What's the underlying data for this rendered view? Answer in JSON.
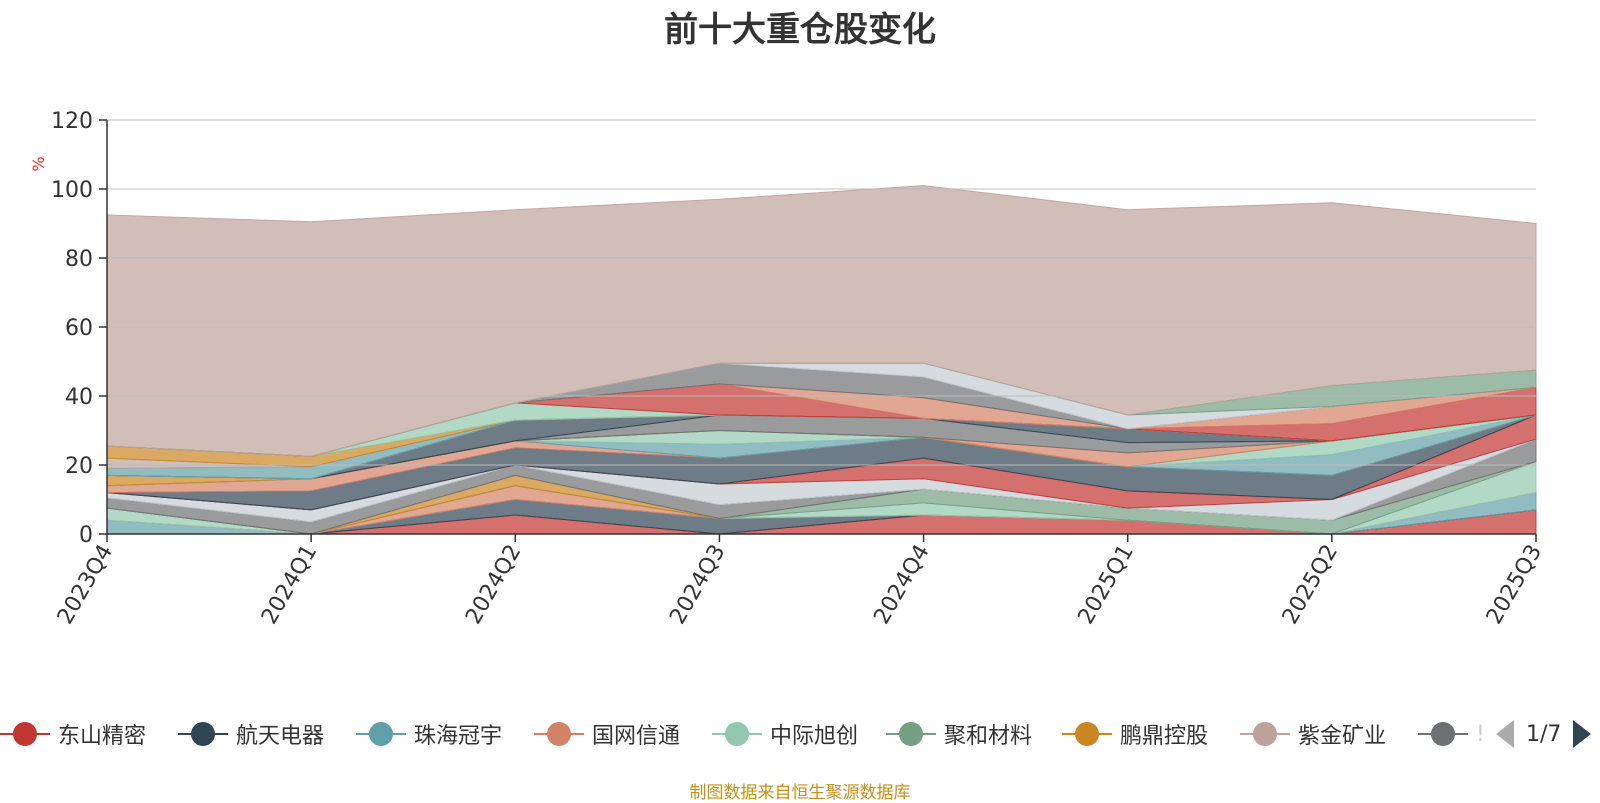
{
  "chart_data": {
    "type": "area",
    "title": "前十大重仓股变化",
    "ylabel": "%",
    "ylim": [
      0,
      120
    ],
    "yticks": [
      0,
      20,
      40,
      60,
      80,
      100,
      120
    ],
    "grid": true,
    "categories": [
      "2023Q4",
      "2024Q1",
      "2024Q2",
      "2024Q3",
      "2024Q4",
      "2025Q1",
      "2025Q2",
      "2025Q3"
    ],
    "series": [
      {
        "name": "东山精密",
        "color": "#c23531",
        "values": [
          0,
          0,
          5.5,
          0,
          5.5,
          4,
          0,
          7
        ]
      },
      {
        "name": "航天电器",
        "color": "#2f4554",
        "values": [
          0,
          0,
          4.5,
          4.5,
          0,
          0,
          0,
          0
        ]
      },
      {
        "name": "珠海冠宇",
        "color": "#61a0a8",
        "values": [
          4,
          0,
          0,
          0,
          0,
          0,
          0,
          5
        ]
      },
      {
        "name": "国网信通",
        "color": "#d48265",
        "values": [
          0,
          0,
          4,
          0,
          0,
          0,
          0,
          0
        ]
      },
      {
        "name": "中际旭创",
        "color": "#91c7ae",
        "values": [
          3.5,
          0,
          0,
          0,
          3.5,
          0,
          0,
          9
        ]
      },
      {
        "name": "聚和材料",
        "color": "#749f83",
        "values": [
          0,
          0,
          0,
          0,
          4,
          3.5,
          4,
          0
        ]
      },
      {
        "name": "鹏鼎控股",
        "color": "#ca8622",
        "values": [
          0,
          0,
          3,
          0,
          0,
          0,
          0,
          0
        ]
      },
      {
        "name": "紫金矿业",
        "color": "#bda29a",
        "values": [
          0,
          0,
          0,
          0,
          0,
          0,
          0,
          0
        ]
      },
      {
        "name": "",
        "color": "#6e7074",
        "values": [
          3,
          3.5,
          3,
          4,
          0,
          0,
          0,
          6.5
        ]
      },
      {
        "name": "",
        "color": "#546570",
        "values": [
          0,
          0,
          0,
          0,
          0,
          0,
          0,
          0
        ]
      },
      {
        "name": "",
        "color": "#c4ccd3",
        "values": [
          1.5,
          3.5,
          0,
          6,
          3,
          0,
          6,
          0
        ]
      },
      {
        "name": "",
        "color": "#c23531",
        "values": [
          0,
          0,
          0,
          0,
          6,
          5,
          0,
          7
        ]
      },
      {
        "name": "",
        "color": "#2f4554",
        "values": [
          0,
          5.5,
          5,
          7.5,
          6,
          7,
          7,
          0
        ]
      },
      {
        "name": "",
        "color": "#d48265",
        "values": [
          2,
          3.5,
          2,
          0,
          0,
          0,
          0,
          0
        ]
      },
      {
        "name": "",
        "color": "#61a0a8",
        "values": [
          0,
          0,
          0,
          4,
          0,
          0,
          6,
          0
        ]
      },
      {
        "name": "",
        "color": "#91c7ae",
        "values": [
          0,
          0,
          0,
          4,
          0,
          0,
          4,
          0
        ]
      },
      {
        "name": "",
        "color": "#ca8622",
        "values": [
          3,
          0,
          0,
          0,
          0,
          0,
          0,
          0
        ]
      },
      {
        "name": "",
        "color": "#d48265",
        "values": [
          0,
          0,
          0,
          0,
          0,
          4,
          0,
          0
        ]
      },
      {
        "name": "",
        "color": "#6e7074",
        "values": [
          0,
          0,
          0,
          4.5,
          5.5,
          3,
          0,
          0
        ]
      },
      {
        "name": "",
        "color": "#2f4554",
        "values": [
          0,
          0,
          6,
          0,
          0,
          4,
          0,
          0
        ]
      },
      {
        "name": "",
        "color": "#c23531",
        "values": [
          0,
          0,
          0,
          0,
          0,
          0,
          0,
          0
        ]
      },
      {
        "name": "",
        "color": "#91c7ae",
        "values": [
          0,
          0,
          0,
          0,
          0,
          0,
          0,
          0
        ]
      },
      {
        "name": "",
        "color": "#61a0a8",
        "values": [
          2,
          3.5,
          0,
          0,
          0,
          0,
          0,
          0
        ]
      },
      {
        "name": "",
        "color": "#bda29a",
        "values": [
          3,
          0,
          0,
          0,
          0,
          0,
          0,
          0
        ]
      },
      {
        "name": "",
        "color": "#ca8622",
        "values": [
          3.5,
          3,
          0,
          0,
          0,
          0,
          0,
          0
        ]
      },
      {
        "name": "",
        "color": "#91c7ae",
        "values": [
          0,
          0,
          5,
          0,
          0,
          0,
          0,
          0
        ]
      },
      {
        "name": "",
        "color": "#c23531",
        "values": [
          0,
          0,
          0,
          9,
          0,
          0,
          5,
          8
        ]
      },
      {
        "name": "",
        "color": "#d48265",
        "values": [
          0,
          0,
          0,
          0,
          6,
          0,
          5,
          0
        ]
      },
      {
        "name": "",
        "color": "#6e7074",
        "values": [
          0,
          0,
          0,
          6,
          6,
          0,
          0,
          0
        ]
      },
      {
        "name": "",
        "color": "#c4ccd3",
        "values": [
          0,
          0,
          0,
          0,
          4,
          4,
          0,
          0
        ]
      },
      {
        "name": "",
        "color": "#749f83",
        "values": [
          0,
          0,
          0,
          0,
          0,
          0,
          6,
          5
        ]
      },
      {
        "name": "",
        "color": "#bda29a",
        "values": [
          67,
          68,
          56,
          47.5,
          51.5,
          59.5,
          53,
          42.5
        ]
      }
    ]
  },
  "legend": {
    "items": [
      {
        "label": "东山精密",
        "color": "#c23531"
      },
      {
        "label": "航天电器",
        "color": "#2f4554"
      },
      {
        "label": "珠海冠宇",
        "color": "#61a0a8"
      },
      {
        "label": "国网信通",
        "color": "#d48265"
      },
      {
        "label": "中际旭创",
        "color": "#91c7ae"
      },
      {
        "label": "聚和材料",
        "color": "#749f83"
      },
      {
        "label": "鹏鼎控股",
        "color": "#ca8622"
      },
      {
        "label": "紫金矿业",
        "color": "#bda29a"
      },
      {
        "label": "!",
        "color": "#6e7074"
      }
    ],
    "page": "1/7"
  },
  "source_note": "制图数据来自恒生聚源数据库"
}
